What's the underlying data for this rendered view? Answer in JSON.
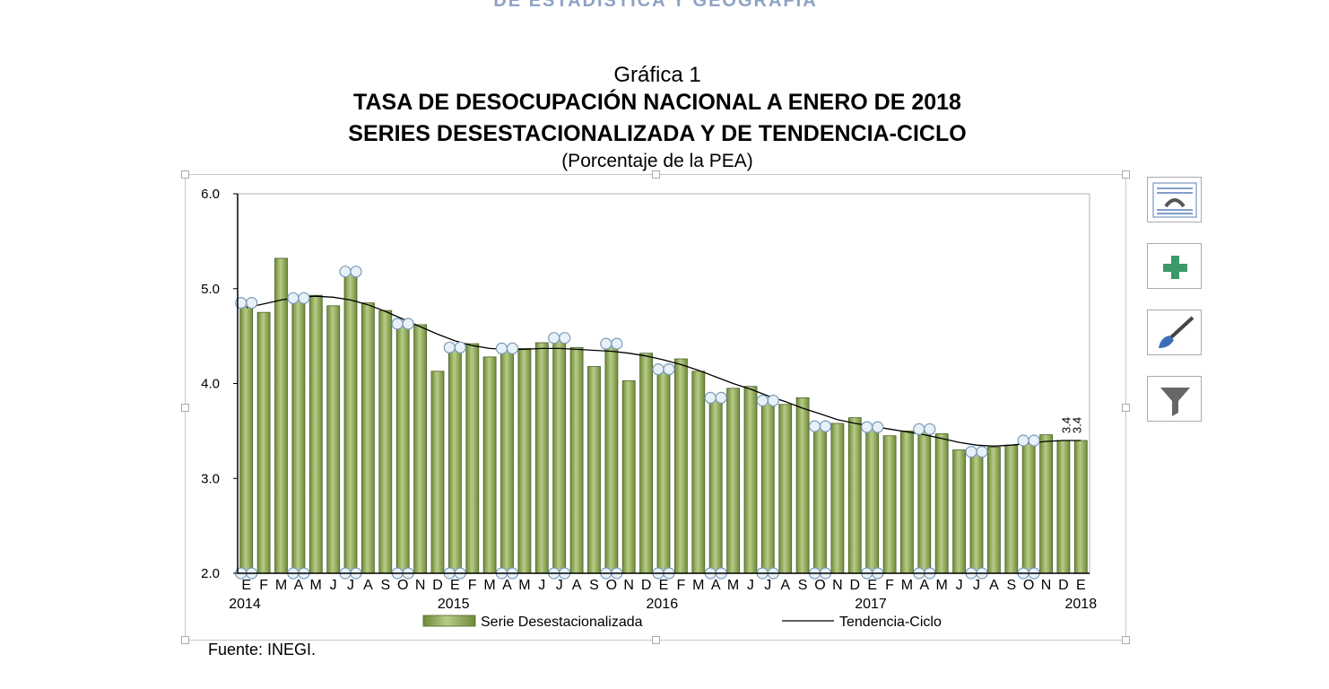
{
  "header": {
    "org": "DE ESTADISTICA Y GEOGRAFIA"
  },
  "title": {
    "line1": "Gráfica 1",
    "line2": "TASA DE DESOCUPACIÓN NACIONAL A ENERO DE 2018",
    "line3": "SERIES DESESTACIONALIZADA Y DE TENDENCIA-CICLO",
    "line4": "(Porcentaje de la PEA)"
  },
  "source": "Fuente: INEGI.",
  "tools": [
    {
      "name": "layout-options-icon"
    },
    {
      "name": "chart-elements-icon"
    },
    {
      "name": "chart-styles-icon"
    },
    {
      "name": "chart-filters-icon"
    }
  ],
  "chart_data": {
    "type": "bar",
    "ylim": [
      2.0,
      6.0
    ],
    "y_ticks": [
      "2.0",
      "3.0",
      "4.0",
      "5.0",
      "6.0"
    ],
    "categories": [
      "E",
      "F",
      "M",
      "A",
      "M",
      "J",
      "J",
      "A",
      "S",
      "O",
      "N",
      "D",
      "E",
      "F",
      "M",
      "A",
      "M",
      "J",
      "J",
      "A",
      "S",
      "O",
      "N",
      "D",
      "E",
      "F",
      "M",
      "A",
      "M",
      "J",
      "J",
      "A",
      "S",
      "O",
      "N",
      "D",
      "E",
      "F",
      "M",
      "A",
      "M",
      "J",
      "J",
      "A",
      "S",
      "O",
      "N",
      "D",
      "E"
    ],
    "year_labels": [
      {
        "index": 0,
        "label": "2014"
      },
      {
        "index": 12,
        "label": "2015"
      },
      {
        "index": 24,
        "label": "2016"
      },
      {
        "index": 36,
        "label": "2017"
      },
      {
        "index": 48,
        "label": "2018"
      }
    ],
    "last_value_labels": [
      "3.4",
      "3.4"
    ],
    "series": [
      {
        "name": "Serie Desestacionalizada",
        "kind": "bar",
        "color": "#8fa858",
        "values": [
          4.85,
          4.75,
          5.32,
          4.9,
          4.93,
          4.82,
          5.18,
          4.85,
          4.77,
          4.63,
          4.62,
          4.13,
          4.38,
          4.42,
          4.28,
          4.37,
          4.37,
          4.43,
          4.48,
          4.38,
          4.18,
          4.42,
          4.03,
          4.32,
          4.15,
          4.26,
          4.13,
          3.85,
          3.95,
          3.97,
          3.82,
          3.78,
          3.85,
          3.55,
          3.58,
          3.64,
          3.54,
          3.45,
          3.5,
          3.52,
          3.47,
          3.3,
          3.28,
          3.33,
          3.35,
          3.4,
          3.46,
          3.4,
          3.4
        ]
      },
      {
        "name": "Tendencia-Ciclo",
        "kind": "line",
        "color": "#000000",
        "values": [
          4.8,
          4.84,
          4.88,
          4.91,
          4.92,
          4.91,
          4.88,
          4.83,
          4.76,
          4.68,
          4.6,
          4.52,
          4.45,
          4.4,
          4.37,
          4.36,
          4.36,
          4.37,
          4.37,
          4.36,
          4.35,
          4.34,
          4.32,
          4.29,
          4.25,
          4.2,
          4.14,
          4.07,
          4.0,
          3.94,
          3.87,
          3.81,
          3.74,
          3.68,
          3.62,
          3.58,
          3.55,
          3.52,
          3.49,
          3.46,
          3.42,
          3.38,
          3.35,
          3.34,
          3.35,
          3.37,
          3.39,
          3.4,
          3.4
        ]
      }
    ],
    "legend": "bottom-center",
    "grid": false
  }
}
